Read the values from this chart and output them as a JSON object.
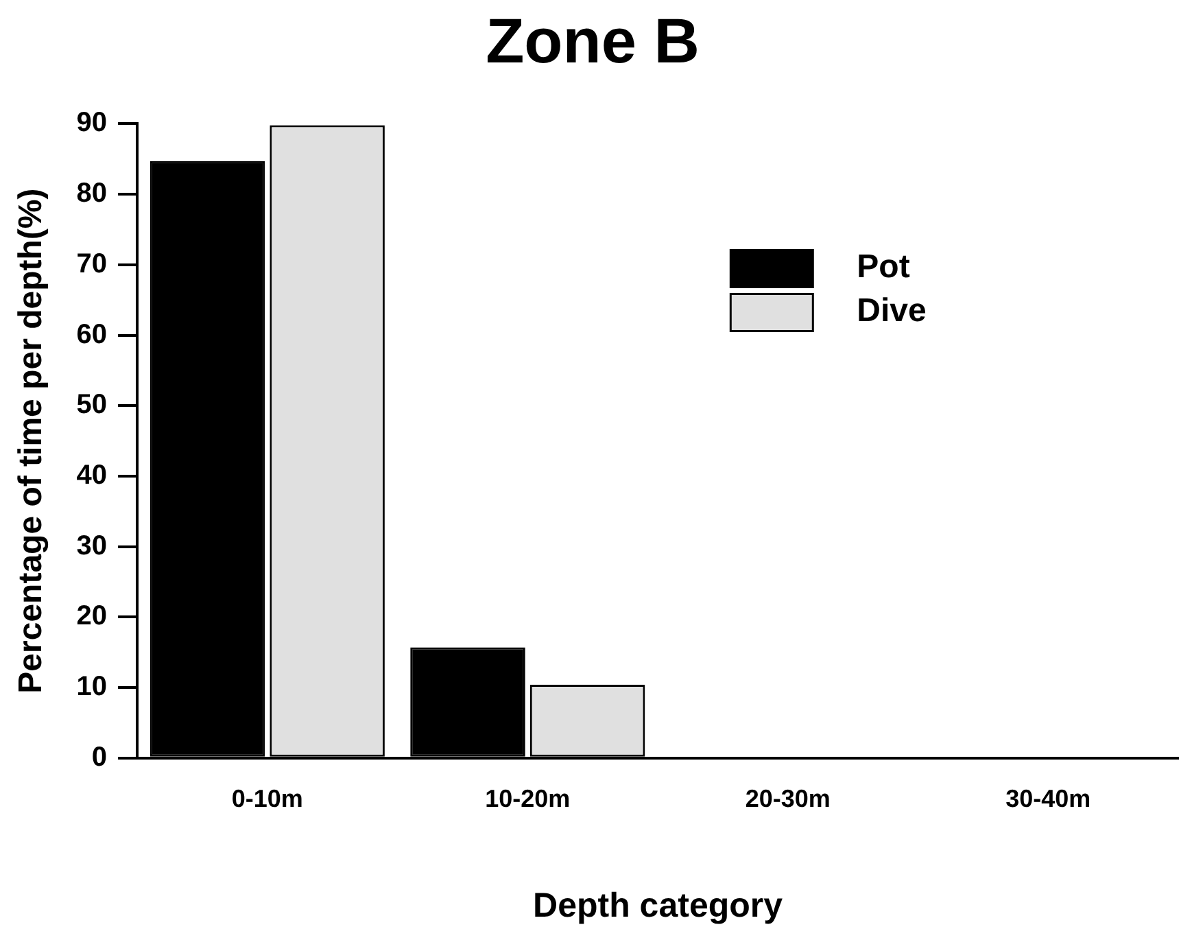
{
  "chart_data": {
    "type": "bar",
    "title": "Zone B",
    "xlabel": "Depth category",
    "ylabel": "Percentage of time per depth(%)",
    "categories": [
      "0-10m",
      "10-20m",
      "20-30m",
      "30-40m"
    ],
    "series": [
      {
        "name": "Pot",
        "color": "#000000",
        "values": [
          84.7,
          15.7,
          0,
          0
        ]
      },
      {
        "name": "Dive",
        "color": "#e0e0e0",
        "values": [
          89.8,
          10.4,
          0,
          0
        ]
      }
    ],
    "ylim": [
      0,
      90
    ],
    "yticks": [
      0,
      10,
      20,
      30,
      40,
      50,
      60,
      70,
      80,
      90
    ],
    "grid": false,
    "legend": "top right"
  }
}
